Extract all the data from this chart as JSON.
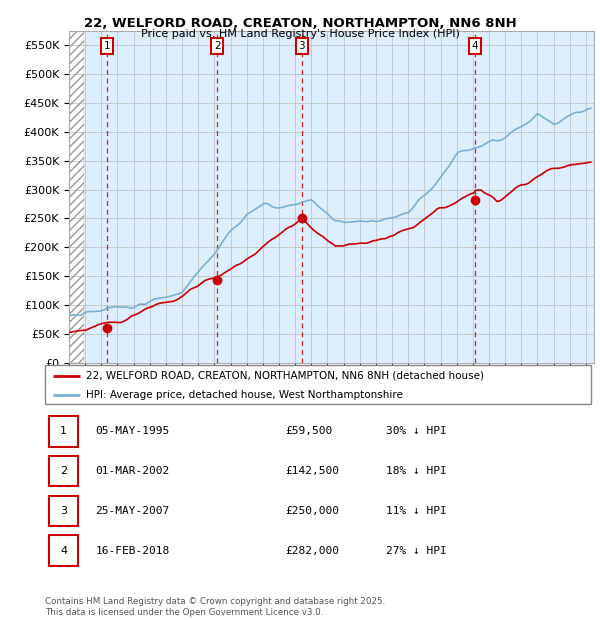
{
  "title_line1": "22, WELFORD ROAD, CREATON, NORTHAMPTON, NN6 8NH",
  "title_line2": "Price paid vs. HM Land Registry's House Price Index (HPI)",
  "ylim": [
    0,
    575000
  ],
  "yticks": [
    0,
    50000,
    100000,
    150000,
    200000,
    250000,
    300000,
    350000,
    400000,
    450000,
    500000,
    550000
  ],
  "ytick_labels": [
    "£0",
    "£50K",
    "£100K",
    "£150K",
    "£200K",
    "£250K",
    "£300K",
    "£350K",
    "£400K",
    "£450K",
    "£500K",
    "£550K"
  ],
  "xlim_start": 1993.0,
  "xlim_end": 2025.5,
  "purchases": [
    {
      "label": "1",
      "date_x": 1995.35,
      "price": 59500
    },
    {
      "label": "2",
      "date_x": 2002.17,
      "price": 142500
    },
    {
      "label": "3",
      "date_x": 2007.4,
      "price": 250000
    },
    {
      "label": "4",
      "date_x": 2018.12,
      "price": 282000
    }
  ],
  "purchase_color": "#cc0000",
  "hpi_color": "#7aafd4",
  "plot_bg_color": "#ddeeff",
  "legend_label_house": "22, WELFORD ROAD, CREATON, NORTHAMPTON, NN6 8NH (detached house)",
  "legend_label_hpi": "HPI: Average price, detached house, West Northamptonshire",
  "table_rows": [
    {
      "num": "1",
      "date": "05-MAY-1995",
      "price": "£59,500",
      "hpi": "30% ↓ HPI"
    },
    {
      "num": "2",
      "date": "01-MAR-2002",
      "price": "£142,500",
      "hpi": "18% ↓ HPI"
    },
    {
      "num": "3",
      "date": "25-MAY-2007",
      "price": "£250,000",
      "hpi": "11% ↓ HPI"
    },
    {
      "num": "4",
      "date": "16-FEB-2018",
      "price": "£282,000",
      "hpi": "27% ↓ HPI"
    }
  ],
  "footer": "Contains HM Land Registry data © Crown copyright and database right 2025.\nThis data is licensed under the Open Government Licence v3.0."
}
